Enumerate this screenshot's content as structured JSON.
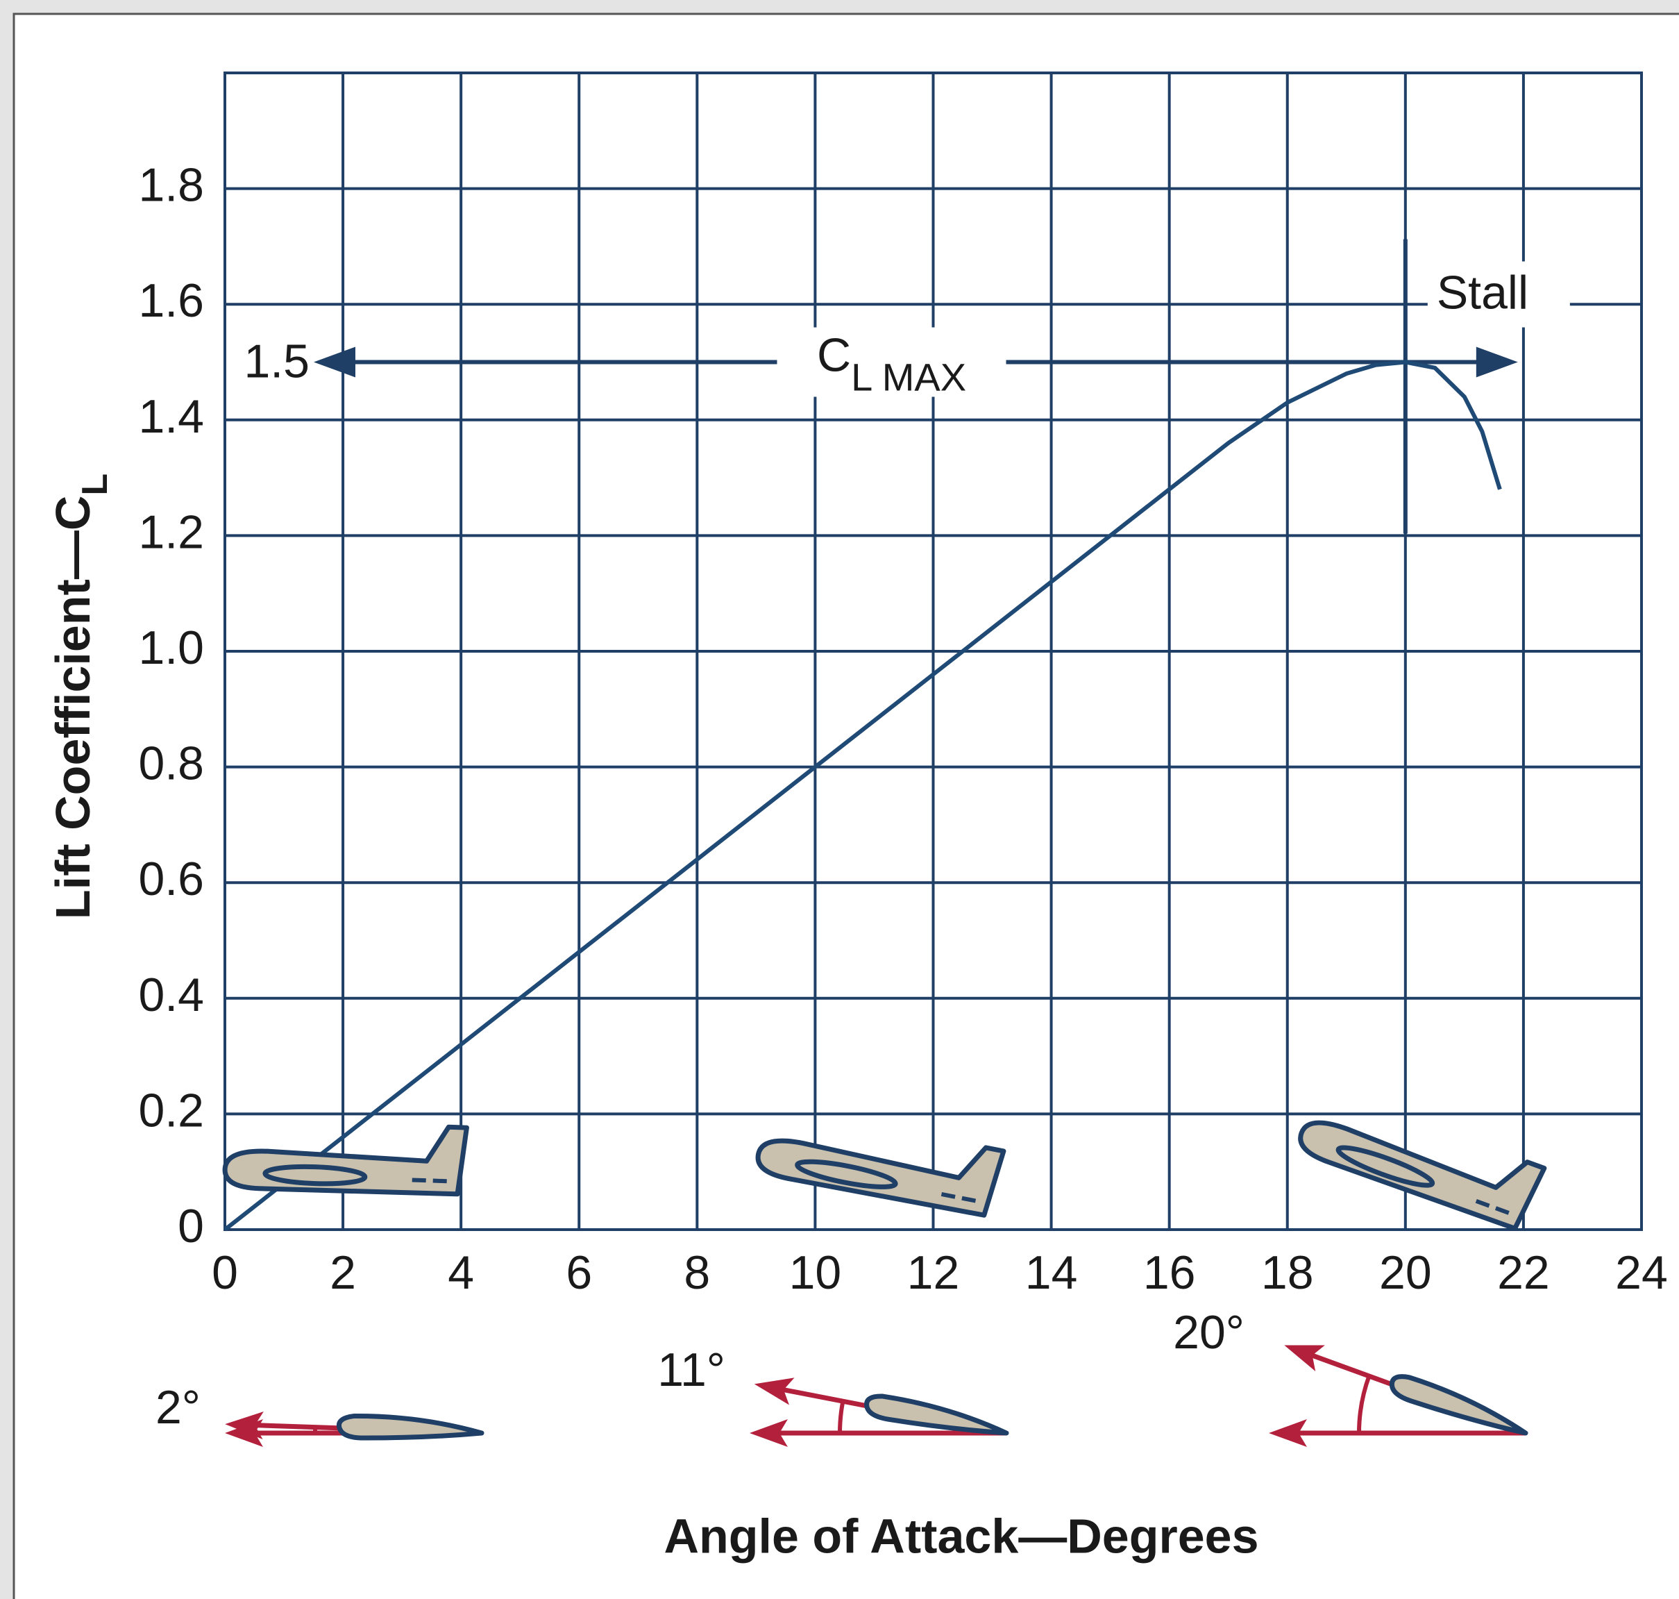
{
  "chart_data": {
    "type": "line",
    "x_label": "Angle of Attack—Degrees",
    "y_label": "Lift Coefficient—C",
    "y_label_sub": "L",
    "xlim": [
      0,
      24
    ],
    "ylim": [
      0,
      2
    ],
    "xticks": [
      0,
      2,
      4,
      6,
      8,
      10,
      12,
      14,
      16,
      18,
      20,
      22,
      24
    ],
    "yticks": [
      0,
      0.2,
      0.4,
      0.6,
      0.8,
      {
        "value": 1,
        "label": "1.0"
      },
      1.2,
      1.4,
      1.6,
      1.8
    ],
    "grid": true,
    "series": [
      {
        "color": "#1f4a75",
        "x": [
          0,
          2,
          4,
          6,
          8,
          10,
          12,
          14,
          16,
          17,
          18,
          19,
          19.5,
          20,
          20.5,
          21,
          21.3,
          21.6
        ],
        "values": [
          0,
          0.16,
          0.32,
          0.48,
          0.64,
          0.8,
          0.96,
          1.12,
          1.28,
          1.36,
          1.43,
          1.48,
          1.495,
          1.5,
          1.49,
          1.44,
          1.38,
          1.28
        ]
      }
    ],
    "cl_max": 1.5,
    "cl_max_label": "C",
    "cl_max_label_sub": "L MAX",
    "stall_x": 20,
    "stall_label": "Stall",
    "angle_examples": [
      {
        "value": 2,
        "label": "2°"
      },
      {
        "value": 11,
        "label": "11°"
      },
      {
        "value": 20,
        "label": "20°"
      }
    ]
  }
}
